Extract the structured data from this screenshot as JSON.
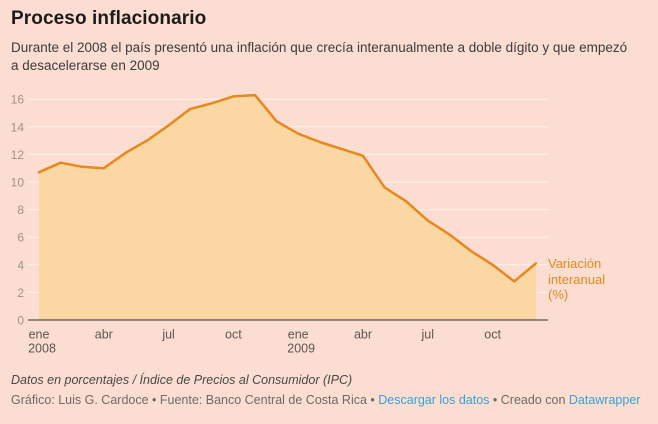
{
  "header": {
    "title": "Proceso inflacionario",
    "subtitle": "Durante el 2008 el país presentó una inflación que crecía interanualmente a doble dígito y que empezó a desacelerarse en 2009"
  },
  "chart_data": {
    "type": "area",
    "x": [
      "ene 2008",
      "feb 2008",
      "mar 2008",
      "abr 2008",
      "may 2008",
      "jun 2008",
      "jul 2008",
      "ago 2008",
      "sep 2008",
      "oct 2008",
      "nov 2008",
      "dic 2008",
      "ene 2009",
      "feb 2009",
      "mar 2009",
      "abr 2009",
      "may 2009",
      "jun 2009",
      "jul 2009",
      "ago 2009",
      "sep 2009",
      "oct 2009",
      "nov 2009",
      "dic 2009"
    ],
    "series": [
      {
        "name": "Variación interanual (%)",
        "values": [
          10.7,
          11.4,
          11.1,
          11.0,
          12.1,
          13.0,
          14.1,
          15.3,
          15.7,
          16.2,
          16.3,
          14.4,
          13.5,
          12.9,
          12.4,
          11.9,
          9.6,
          8.6,
          7.2,
          6.2,
          5.0,
          4.0,
          2.8,
          4.1
        ]
      }
    ],
    "line_label": "Variación interanual (%)",
    "ylim": [
      0,
      16.8
    ],
    "y_ticks": [
      0,
      2,
      4,
      6,
      8,
      10,
      12,
      14,
      16
    ],
    "x_ticks": [
      {
        "index": 0,
        "label": "ene",
        "year": "2008"
      },
      {
        "index": 3,
        "label": "abr",
        "year": ""
      },
      {
        "index": 6,
        "label": "jul",
        "year": ""
      },
      {
        "index": 9,
        "label": "oct",
        "year": ""
      },
      {
        "index": 12,
        "label": "ene",
        "year": "2009"
      },
      {
        "index": 15,
        "label": "abr",
        "year": ""
      },
      {
        "index": 18,
        "label": "jul",
        "year": ""
      },
      {
        "index": 21,
        "label": "oct",
        "year": ""
      }
    ],
    "grid": true,
    "legend_position": "right-of-line-end",
    "colors": {
      "background": "#fbded1",
      "line": "#e8871e",
      "area_fill": "#fbd7a4",
      "gridline": "rgba(255,255,255,0.6)",
      "axis_line": "#2b2b2b",
      "y_tick_text": "#a59086",
      "x_tick_text": "#5d5751",
      "annotation": "#e8871e"
    }
  },
  "footer": {
    "notes": "Datos en porcentajes / Índice de Precios al Consumidor (IPC)",
    "credit_prefix": "Gráfico: Luis G. Cardoce • Fuente: Banco Central de Costa Rica • ",
    "download_link": "Descargar los datos",
    "separator": " • ",
    "created_with": "Creado con ",
    "brand_link": "Datawrapper"
  }
}
